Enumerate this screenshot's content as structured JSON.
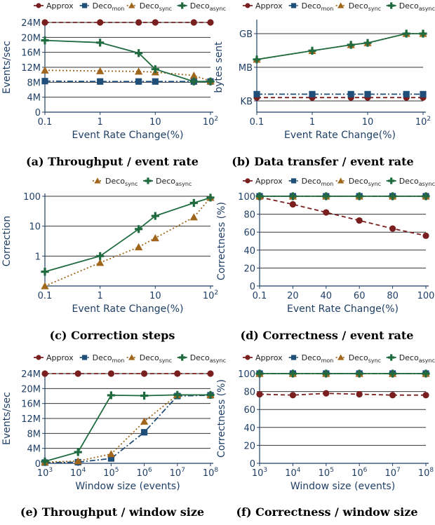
{
  "colors": {
    "Approx": "#7a1f1f",
    "Deco_mon": "#1f4e79",
    "Deco_sync": "#a0661c",
    "Deco_async": "#1f6b3f",
    "axis": "#1f3f66",
    "grid": "#333333"
  },
  "legend_names": {
    "Approx": {
      "base": "Approx",
      "sub": ""
    },
    "Deco_mon": {
      "base": "Deco",
      "sub": "mon"
    },
    "Deco_sync": {
      "base": "Deco",
      "sub": "sync"
    },
    "Deco_async": {
      "base": "Deco",
      "sub": "async"
    }
  },
  "chart_data": [
    {
      "id": "a",
      "type": "line",
      "caption": "(a) Throughput / event rate",
      "xlabel": "Event Rate Change(%)",
      "ylabel": "Events/sec",
      "xscale": "log",
      "xlim": [
        0.1,
        100
      ],
      "xticks": [
        {
          "v": 0.1,
          "label": "0.1"
        },
        {
          "v": 1,
          "label": "1"
        },
        {
          "v": 10,
          "label": "10"
        },
        {
          "v": 100,
          "label": "10",
          "sup": "2"
        }
      ],
      "ylim": [
        0,
        24
      ],
      "yticks": [
        {
          "v": 0,
          "label": "0"
        },
        {
          "v": 4,
          "label": "4M"
        },
        {
          "v": 8,
          "label": "8M"
        },
        {
          "v": 12,
          "label": "12M"
        },
        {
          "v": 16,
          "label": "16M"
        },
        {
          "v": 20,
          "label": "20M"
        },
        {
          "v": 24,
          "label": "24M"
        }
      ],
      "grid": true,
      "legend": [
        "Approx",
        "Deco_mon",
        "Deco_sync",
        "Deco_async"
      ],
      "series": [
        {
          "name": "Approx",
          "x": [
            0.1,
            1,
            5,
            10,
            50,
            100
          ],
          "y": [
            24,
            24,
            24,
            24,
            24,
            24
          ]
        },
        {
          "name": "Deco_mon",
          "x": [
            0.1,
            1,
            5,
            10,
            50,
            100
          ],
          "y": [
            8.3,
            8.2,
            8.2,
            8.2,
            8.2,
            8.2
          ]
        },
        {
          "name": "Deco_sync",
          "x": [
            0.1,
            1,
            5,
            10,
            50,
            100
          ],
          "y": [
            11.2,
            11,
            10.9,
            10.7,
            9.8,
            8.3
          ]
        },
        {
          "name": "Deco_async",
          "x": [
            0.1,
            1,
            5,
            10,
            50,
            100
          ],
          "y": [
            19.2,
            18.6,
            15.8,
            11.5,
            8.2,
            8.2
          ]
        }
      ]
    },
    {
      "id": "b",
      "type": "line",
      "caption": "(b) Data transfer / event rate",
      "xlabel": "Event Rate Change(%)",
      "ylabel": "bytes sent",
      "xscale": "log",
      "xlim": [
        0.1,
        100
      ],
      "xticks": [
        {
          "v": 0.1,
          "label": "0.1"
        },
        {
          "v": 1,
          "label": "1"
        },
        {
          "v": 10,
          "label": "10"
        },
        {
          "v": 100,
          "label": "10",
          "sup": "2"
        }
      ],
      "yscale": "log",
      "ylim": [
        100,
        10000000000
      ],
      "yticks": [
        {
          "v": 1000,
          "label": "KB"
        },
        {
          "v": 1000000,
          "label": "MB"
        },
        {
          "v": 1000000000,
          "label": "GB"
        }
      ],
      "grid": true,
      "legend": [
        "Approx",
        "Deco_mon",
        "Deco_sync",
        "Deco_async"
      ],
      "series": [
        {
          "name": "Approx",
          "x": [
            0.1,
            1,
            5,
            10,
            50,
            100
          ],
          "y": [
            2000,
            2000,
            2000,
            2000,
            2000,
            2000
          ]
        },
        {
          "name": "Deco_mon",
          "x": [
            0.1,
            1,
            5,
            10,
            50,
            100
          ],
          "y": [
            4000,
            4000,
            4000,
            4000,
            4000,
            4000
          ]
        },
        {
          "name": "Deco_sync",
          "x": [
            0.1,
            1,
            5,
            10,
            50,
            100
          ],
          "y": [
            5000000,
            30000000,
            100000000,
            150000000,
            1000000000,
            1000000000
          ]
        },
        {
          "name": "Deco_async",
          "x": [
            0.1,
            1,
            5,
            10,
            50,
            100
          ],
          "y": [
            5000000,
            30000000,
            100000000,
            150000000,
            1000000000,
            1000000000
          ]
        }
      ]
    },
    {
      "id": "c",
      "type": "line",
      "caption": "(c) Correction steps",
      "xlabel": "Event Rate Change(%)",
      "ylabel": "Correction",
      "xscale": "log",
      "xlim": [
        0.1,
        100
      ],
      "xticks": [
        {
          "v": 0.1,
          "label": "0.1"
        },
        {
          "v": 1,
          "label": "1"
        },
        {
          "v": 10,
          "label": "10"
        },
        {
          "v": 100,
          "label": "10",
          "sup": "2"
        }
      ],
      "yscale": "log",
      "ylim": [
        0.1,
        100
      ],
      "yticks": [
        {
          "v": 1,
          "label": "1"
        },
        {
          "v": 10,
          "label": "10"
        },
        {
          "v": 100,
          "label": "100"
        }
      ],
      "grid": true,
      "legend": [
        "Deco_sync",
        "Deco_async"
      ],
      "series": [
        {
          "name": "Deco_sync",
          "x": [
            0.1,
            1,
            5,
            10,
            50,
            100
          ],
          "y": [
            0.1,
            0.6,
            2,
            4,
            20,
            90
          ]
        },
        {
          "name": "Deco_async",
          "x": [
            0.1,
            1,
            5,
            10,
            50,
            100
          ],
          "y": [
            0.3,
            1,
            8,
            22,
            60,
            90
          ]
        }
      ]
    },
    {
      "id": "d",
      "type": "line",
      "caption": "(d) Correctness / event rate",
      "xlabel": "Event Rate Change(%)",
      "ylabel": "Correctness (%)",
      "xscale": "linear",
      "xlim": [
        0,
        100
      ],
      "xticks": [
        {
          "v": 0,
          "label": "0.1"
        },
        {
          "v": 20,
          "label": "20"
        },
        {
          "v": 40,
          "label": "40"
        },
        {
          "v": 60,
          "label": "60"
        },
        {
          "v": 80,
          "label": "80"
        },
        {
          "v": 100,
          "label": "100"
        }
      ],
      "ylim": [
        0,
        100
      ],
      "yticks": [
        {
          "v": 0,
          "label": "0"
        },
        {
          "v": 20,
          "label": "20"
        },
        {
          "v": 40,
          "label": "40"
        },
        {
          "v": 60,
          "label": "60"
        },
        {
          "v": 80,
          "label": "80"
        },
        {
          "v": 100,
          "label": "100"
        }
      ],
      "grid": true,
      "legend": [
        "Approx",
        "Deco_mon",
        "Deco_sync",
        "Deco_async"
      ],
      "series": [
        {
          "name": "Approx",
          "x": [
            0,
            20,
            40,
            60,
            80,
            100
          ],
          "y": [
            99,
            91,
            82,
            73,
            64,
            56
          ]
        },
        {
          "name": "Deco_mon",
          "x": [
            0,
            20,
            40,
            60,
            80,
            100
          ],
          "y": [
            100,
            100,
            100,
            100,
            100,
            100
          ]
        },
        {
          "name": "Deco_sync",
          "x": [
            0,
            20,
            40,
            60,
            80,
            100
          ],
          "y": [
            100,
            100,
            100,
            100,
            100,
            100
          ]
        },
        {
          "name": "Deco_async",
          "x": [
            0,
            20,
            40,
            60,
            80,
            100
          ],
          "y": [
            100,
            100,
            100,
            100,
            100,
            100
          ]
        }
      ]
    },
    {
      "id": "e",
      "type": "line",
      "caption": "(e) Throughput / window size",
      "xlabel": "Window size (events)",
      "ylabel": "Events/sec",
      "xscale": "log",
      "xlim": [
        1000,
        100000000
      ],
      "xticks": [
        {
          "v": 1000,
          "label": "10",
          "sup": "3"
        },
        {
          "v": 10000,
          "label": "10",
          "sup": "4"
        },
        {
          "v": 100000,
          "label": "10",
          "sup": "5"
        },
        {
          "v": 1000000,
          "label": "10",
          "sup": "6"
        },
        {
          "v": 10000000,
          "label": "10",
          "sup": "7"
        },
        {
          "v": 100000000,
          "label": "10",
          "sup": "8"
        }
      ],
      "ylim": [
        0,
        24
      ],
      "yticks": [
        {
          "v": 0,
          "label": "0"
        },
        {
          "v": 4,
          "label": "4M"
        },
        {
          "v": 8,
          "label": "8M"
        },
        {
          "v": 12,
          "label": "12M"
        },
        {
          "v": 16,
          "label": "16M"
        },
        {
          "v": 20,
          "label": "20M"
        },
        {
          "v": 24,
          "label": "24M"
        }
      ],
      "grid": true,
      "legend": [
        "Approx",
        "Deco_mon",
        "Deco_sync",
        "Deco_async"
      ],
      "series": [
        {
          "name": "Approx",
          "x": [
            1000,
            10000,
            100000,
            1000000,
            10000000,
            100000000
          ],
          "y": [
            24,
            24,
            24,
            24,
            24,
            24
          ]
        },
        {
          "name": "Deco_mon",
          "x": [
            1000,
            10000,
            100000,
            1000000,
            10000000,
            100000000
          ],
          "y": [
            0.2,
            0.3,
            1.3,
            8.3,
            18,
            18.2
          ]
        },
        {
          "name": "Deco_sync",
          "x": [
            1000,
            10000,
            100000,
            1000000,
            10000000,
            100000000
          ],
          "y": [
            0.3,
            0.6,
            2.5,
            11.2,
            18.3,
            18.3
          ]
        },
        {
          "name": "Deco_async",
          "x": [
            1000,
            10000,
            100000,
            1000000,
            10000000,
            100000000
          ],
          "y": [
            0.5,
            3,
            18.2,
            18.1,
            18.3,
            18.3
          ]
        }
      ]
    },
    {
      "id": "f",
      "type": "line",
      "caption": "(f) Correctness / window size",
      "xlabel": "Window size (events)",
      "ylabel": "Correctness (%)",
      "xscale": "log",
      "xlim": [
        1000,
        100000000
      ],
      "xticks": [
        {
          "v": 1000,
          "label": "10",
          "sup": "3"
        },
        {
          "v": 10000,
          "label": "10",
          "sup": "4"
        },
        {
          "v": 100000,
          "label": "10",
          "sup": "5"
        },
        {
          "v": 1000000,
          "label": "10",
          "sup": "6"
        },
        {
          "v": 10000000,
          "label": "10",
          "sup": "7"
        },
        {
          "v": 100000000,
          "label": "10",
          "sup": "8"
        }
      ],
      "ylim": [
        0,
        100
      ],
      "yticks": [
        {
          "v": 0,
          "label": "0"
        },
        {
          "v": 20,
          "label": "20"
        },
        {
          "v": 40,
          "label": "40"
        },
        {
          "v": 60,
          "label": "60"
        },
        {
          "v": 80,
          "label": "80"
        },
        {
          "v": 100,
          "label": "100"
        }
      ],
      "grid": true,
      "legend": [
        "Approx",
        "Deco_mon",
        "Deco_sync",
        "Deco_async"
      ],
      "series": [
        {
          "name": "Approx",
          "x": [
            1000,
            10000,
            100000,
            1000000,
            10000000,
            100000000
          ],
          "y": [
            77,
            76,
            78,
            77,
            76,
            76
          ]
        },
        {
          "name": "Deco_mon",
          "x": [
            1000,
            10000,
            100000,
            1000000,
            10000000,
            100000000
          ],
          "y": [
            100,
            100,
            100,
            100,
            100,
            100
          ]
        },
        {
          "name": "Deco_sync",
          "x": [
            1000,
            10000,
            100000,
            1000000,
            10000000,
            100000000
          ],
          "y": [
            100,
            100,
            100,
            100,
            100,
            100
          ]
        },
        {
          "name": "Deco_async",
          "x": [
            1000,
            10000,
            100000,
            1000000,
            10000000,
            100000000
          ],
          "y": [
            100,
            100,
            100,
            100,
            100,
            100
          ]
        }
      ]
    }
  ]
}
